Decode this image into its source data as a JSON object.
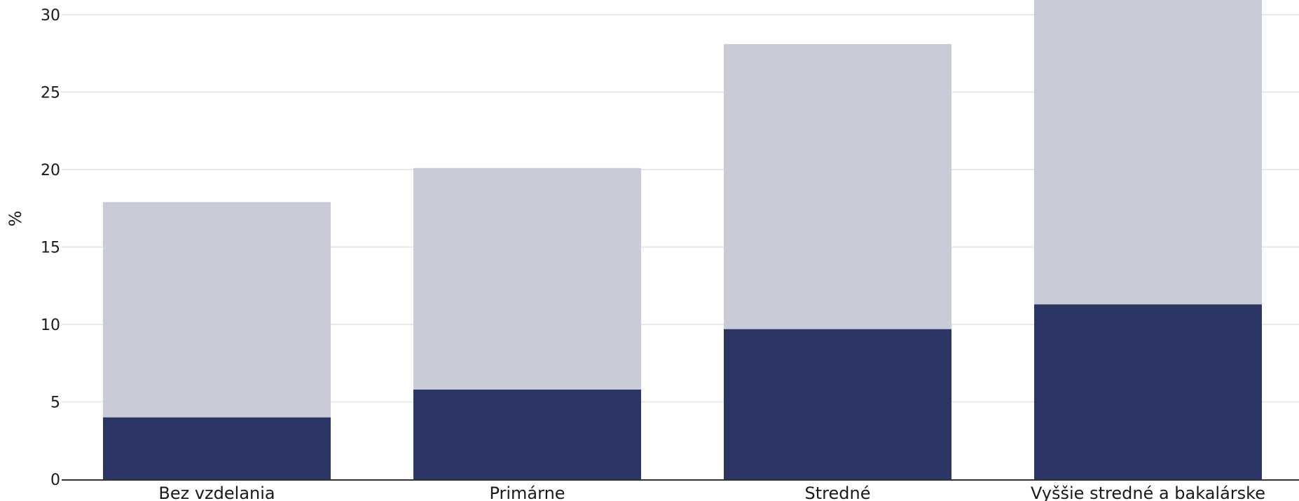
{
  "chart_data": {
    "type": "bar",
    "stacked": true,
    "categories": [
      "Bez vzdelania",
      "Primárne",
      "Stredné",
      "Vyššie stredné a bakalárske"
    ],
    "series": [
      {
        "values": [
          4.0,
          5.8,
          9.7,
          11.3
        ],
        "color": "#2b3664"
      },
      {
        "values": [
          13.9,
          14.3,
          18.4,
          20.5
        ],
        "color": "#cacbd8"
      }
    ],
    "ylabel": "%",
    "ylim": [
      0,
      31
    ],
    "yticks": [
      0,
      5,
      10,
      15,
      20,
      25,
      30
    ],
    "grid": true,
    "grid_color": "#e8e8e8",
    "axis_color": "#333333"
  }
}
